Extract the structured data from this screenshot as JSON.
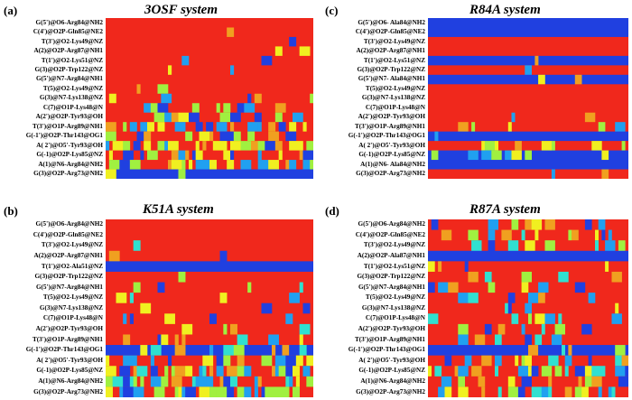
{
  "chart_data": [
    {
      "type": "heatmap",
      "panel": "(a)",
      "title": "3OSF system",
      "rows": [
        "G(5')@O6-Arg84@NH2",
        "C(4')@O2P-Gln85@NE2",
        "T(3')@O2-Lys49@NZ",
        "A(2)@O2P-Arg87@NH1",
        "T(1')@O2-Lys51@NZ",
        "G(3)@O2P-Trp122@NZ",
        "G(5')@N7-Arg84@NH1",
        "T(5)@O2-Lys49@NZ",
        "G(3)@N7-Lys138@NZ",
        "C(7)@O1P-Lys48@N",
        "A(2')@O2P-Tyr93@OH",
        "T(3')@O1P-Arg89@NH1",
        "G(-1')@O2P-Thr143@OG1",
        "A( 2')@O5'-Tyr93@OH",
        "G(-1)@O2P-Lys85@NZ",
        "A(1)@N6-Arg84@NH2",
        "G(3)@O2P-Arg73@NH2"
      ],
      "colorscale": [
        "#2040e0",
        "#20a0f0",
        "#30e0d0",
        "#a0f040",
        "#f0f020",
        "#f0a020",
        "#f0281c"
      ],
      "dominant_level": 6
    },
    {
      "type": "heatmap",
      "panel": "(c)",
      "title": "R84A system",
      "rows": [
        "G(5')@O6- Ala84@NH2",
        "C(4')@O2P-Gln85@NE2",
        "T(3')@O2-Lys49@NZ",
        "A(2)@O2P-Arg87@NH1",
        "T(1')@O2-Lys51@NZ",
        "G(3)@O2P-Trp122@NZ",
        "G(5')@N7- Ala84@NH1",
        "T(5)@O2-Lys49@NZ",
        "G(3)@N7-Lys138@NZ",
        "C(7)@O1P-Lys48@N",
        "A(2')@O2P-Tyr93@OH",
        "T(3')@O1P-Arg89@NH1",
        "G(-1')@O2P-Thr143@OG1",
        "A( 2')@O5'-Tyr93@OH",
        "G(-1)@O2P-Lys85@NZ",
        "A(1)@N6- Ala84@NH2",
        "G(3)@O2P-Arg73@NH2"
      ],
      "colorscale": [
        "#2040e0",
        "#20a0f0",
        "#30e0d0",
        "#a0f040",
        "#f0f020",
        "#f0a020",
        "#f0281c"
      ]
    },
    {
      "type": "heatmap",
      "panel": "(b)",
      "title": "K51A system",
      "rows": [
        "G(5')@O6-Arg84@NH2",
        "C(4')@O2P-Gln85@NE2",
        "T(3')@O2-Lys49@NZ",
        "A(2)@O2P-Arg87@NH1",
        "T(1')@O2-Ala51@NZ",
        "G(3)@O2P-Trp122@NZ",
        "G(5')@N7-Arg84@NH1",
        "T(5)@O2-Lys49@NZ",
        "G(3)@N7-Lys138@NZ",
        "C(7)@O1P-Lys48@N",
        "A(2')@O2P-Tyr93@OH",
        "T(3')@O1P-Arg89@NH1",
        "G(-1')@O2P-Thr143@OG1",
        "A( 2')@O5'-Tyr93@OH",
        "G(-1)@O2P-Lys85@NZ",
        "A(1)@N6-Arg84@NH2",
        "G(3)@O2P-Arg73@NH2"
      ],
      "colorscale": [
        "#2040e0",
        "#20a0f0",
        "#30e0d0",
        "#a0f040",
        "#f0f020",
        "#f0a020",
        "#f0281c"
      ]
    },
    {
      "type": "heatmap",
      "panel": "(d)",
      "title": "R87A system",
      "rows": [
        "G(5')@O6-Arg84@NH2",
        "C(4')@O2P-Gln85@NE2",
        "T(3')@O2-Lys49@NZ",
        "A(2)@O2P-Ala87@NH1",
        "T(1')@O2-Lys51@NZ",
        "G(3)@O2P-Trp122@NZ",
        "G(5')@N7-Arg84@NH1",
        "T(5)@O2-Lys49@NZ",
        "G(3)@N7-Lys138@NZ",
        "C(7)@O1P-Lys48@N",
        "A(2')@O2P-Tyr93@OH",
        "T(3')@O1P-Arg89@NH1",
        "G(-1')@O2P-Thr143@OG1",
        "A( 2')@O5'-Tyr93@OH",
        "G(-1)@O2P-Lys85@NZ",
        "A(1)@N6-Arg84@NH2",
        "G(3)@O2P-Arg73@NH2"
      ],
      "colorscale": [
        "#2040e0",
        "#20a0f0",
        "#30e0d0",
        "#a0f040",
        "#f0f020",
        "#f0a020",
        "#f0281c"
      ]
    }
  ]
}
